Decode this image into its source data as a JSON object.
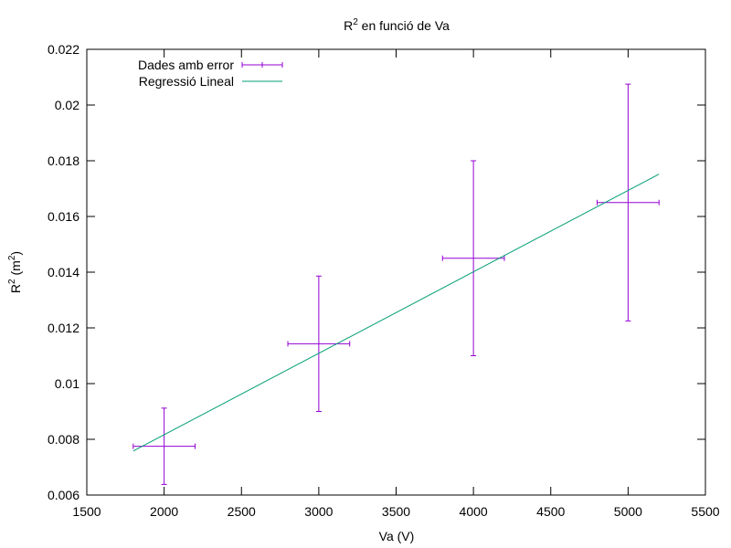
{
  "chart_data": {
    "type": "scatter",
    "title": {
      "base": "R",
      "sup": "2",
      "rest": " en funció de Va"
    },
    "xlabel": "Va (V)",
    "ylabel": {
      "base": "R",
      "sup1": "2",
      "mid": " (m",
      "sup2": "2",
      "end": ")"
    },
    "xlim": [
      1500,
      5500
    ],
    "ylim": [
      0.006,
      0.022
    ],
    "x_ticks": [
      1500,
      2000,
      2500,
      3000,
      3500,
      4000,
      4500,
      5000,
      5500
    ],
    "y_ticks": [
      0.006,
      0.008,
      0.01,
      0.012,
      0.014,
      0.016,
      0.018,
      0.02,
      0.022
    ],
    "x_tick_labels": [
      "1500",
      "2000",
      "2500",
      "3000",
      "3500",
      "4000",
      "4500",
      "5000",
      "5500"
    ],
    "y_tick_labels": [
      "0.006",
      "0.008",
      "0.01",
      "0.012",
      "0.014",
      "0.016",
      "0.018",
      "0.02",
      "0.022"
    ],
    "grid": false,
    "legend_position": "top-left",
    "series": [
      {
        "name": "Dades amb error",
        "kind": "xyerrorbars",
        "color": "#9400d3",
        "points": [
          {
            "x": 2000,
            "y": 0.00775,
            "xerr": 200,
            "yerr": 0.00137
          },
          {
            "x": 3000,
            "y": 0.01143,
            "xerr": 200,
            "yerr": 0.00243
          },
          {
            "x": 4000,
            "y": 0.0145,
            "xerr": 200,
            "yerr": 0.0035
          },
          {
            "x": 5000,
            "y": 0.0165,
            "xerr": 200,
            "yerr": 0.00425
          }
        ]
      },
      {
        "name": "Regressió Lineal",
        "kind": "line",
        "color": "#009e73",
        "x": [
          1800,
          5200
        ],
        "y": [
          0.00758,
          0.01752
        ]
      }
    ]
  }
}
